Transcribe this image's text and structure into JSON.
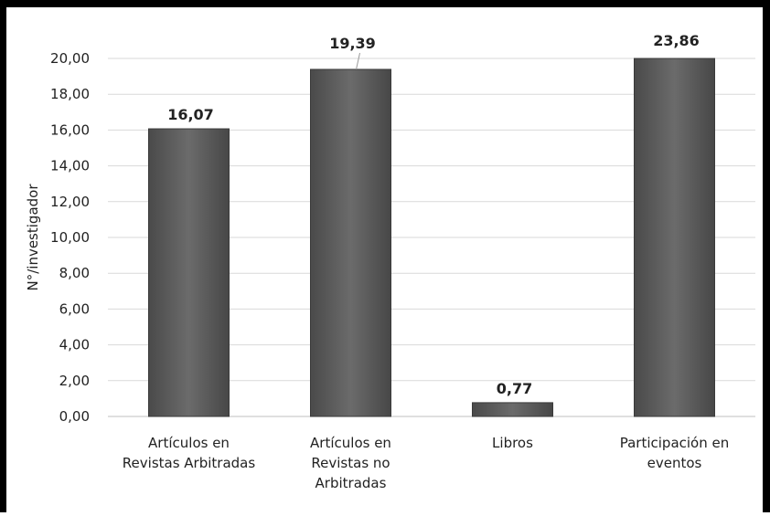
{
  "chart_data": {
    "type": "bar",
    "title": "",
    "xlabel": "",
    "ylabel": "N°/investigador",
    "categories": [
      [
        "Artículos en",
        "Revistas Arbitradas"
      ],
      [
        "Artículos en",
        "Revistas no",
        "Arbitradas"
      ],
      [
        "Libros"
      ],
      [
        "Participación en",
        "eventos"
      ]
    ],
    "values": [
      16.07,
      19.39,
      0.77,
      23.86
    ],
    "value_labels": [
      "16,07",
      "19,39",
      "0,77",
      "23,86"
    ],
    "ylim": [
      0,
      20
    ],
    "yticks": [
      "0,00",
      "2,00",
      "4,00",
      "6,00",
      "8,00",
      "10,00",
      "12,00",
      "14,00",
      "16,00",
      "18,00",
      "20,00"
    ],
    "grid": true,
    "legend": "none",
    "colors": {
      "bar": "#5b5b5b",
      "bar_edge": "#3a3a3a",
      "grid": "#d9d9d9",
      "text": "#222222"
    }
  }
}
